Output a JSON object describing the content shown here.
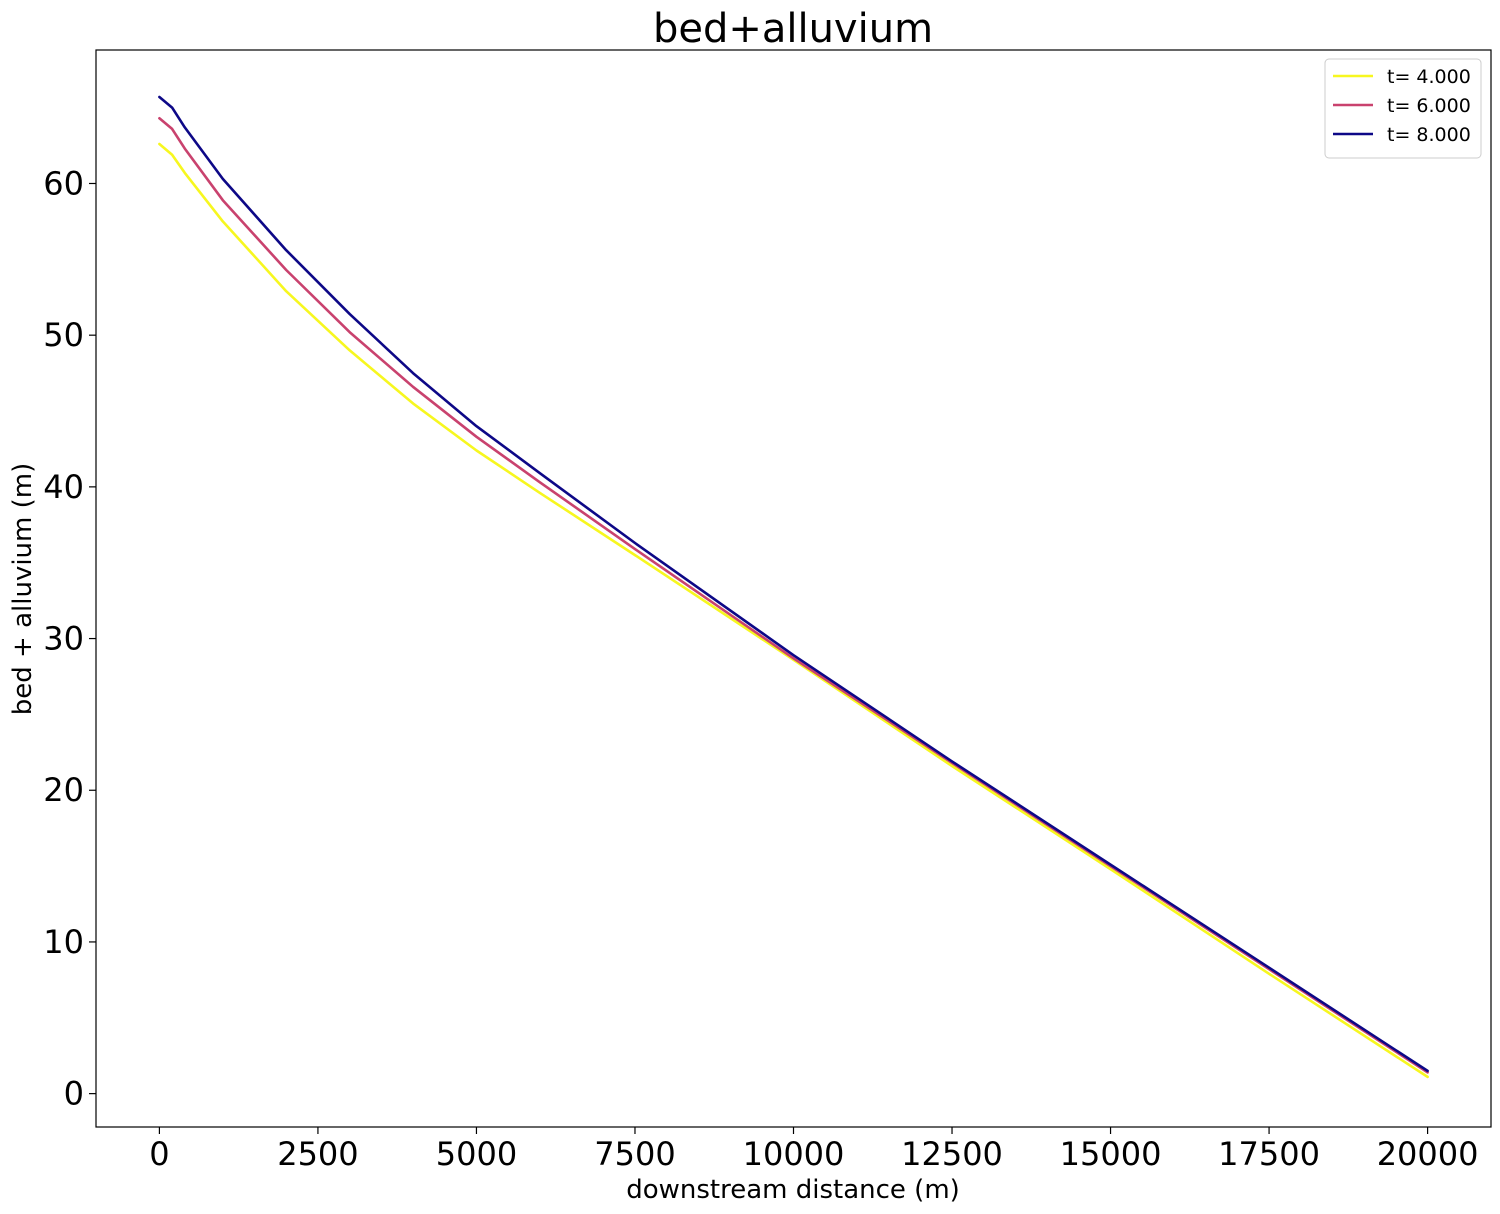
{
  "chart_data": {
    "type": "line",
    "title": "bed+alluvium",
    "xlabel": "downstream distance (m)",
    "ylabel": "bed + alluvium (m)",
    "xlim": [
      -1000,
      21000
    ],
    "ylim": [
      -2.2,
      68.8
    ],
    "xticks": [
      0,
      2500,
      5000,
      7500,
      10000,
      12500,
      15000,
      17500,
      20000
    ],
    "xtick_labels": [
      "0",
      "2500",
      "5000",
      "7500",
      "10000",
      "12500",
      "15000",
      "17500",
      "20000"
    ],
    "yticks": [
      0,
      10,
      20,
      30,
      40,
      50,
      60
    ],
    "ytick_labels": [
      "0",
      "10",
      "20",
      "30",
      "40",
      "50",
      "60"
    ],
    "grid": false,
    "legend_position": "top-right",
    "series": [
      {
        "name": "t= 4.000",
        "color": "#f7f71f",
        "x": [
          0,
          200,
          400,
          1000,
          2000,
          3000,
          4000,
          5000,
          6000,
          7500,
          10000,
          12500,
          15000,
          17500,
          20000
        ],
        "y": [
          62.6,
          61.9,
          60.7,
          57.5,
          52.9,
          49.0,
          45.5,
          42.4,
          39.6,
          35.5,
          28.6,
          21.6,
          14.8,
          7.9,
          1.1
        ]
      },
      {
        "name": "t= 6.000",
        "color": "#c9426e",
        "x": [
          0,
          200,
          400,
          1000,
          2000,
          3000,
          4000,
          5000,
          6000,
          7500,
          10000,
          12500,
          15000,
          17500,
          20000
        ],
        "y": [
          64.3,
          63.6,
          62.3,
          58.9,
          54.3,
          50.2,
          46.6,
          43.3,
          40.3,
          35.9,
          28.7,
          21.8,
          15.0,
          8.2,
          1.4
        ]
      },
      {
        "name": "t= 8.000",
        "color": "#0d0887",
        "x": [
          0,
          200,
          400,
          1000,
          2000,
          3000,
          4000,
          5000,
          6000,
          7500,
          10000,
          12500,
          15000,
          17500,
          20000
        ],
        "y": [
          65.7,
          65.0,
          63.7,
          60.3,
          55.6,
          51.4,
          47.5,
          44.0,
          40.9,
          36.3,
          28.9,
          21.9,
          15.1,
          8.3,
          1.5
        ]
      }
    ]
  }
}
